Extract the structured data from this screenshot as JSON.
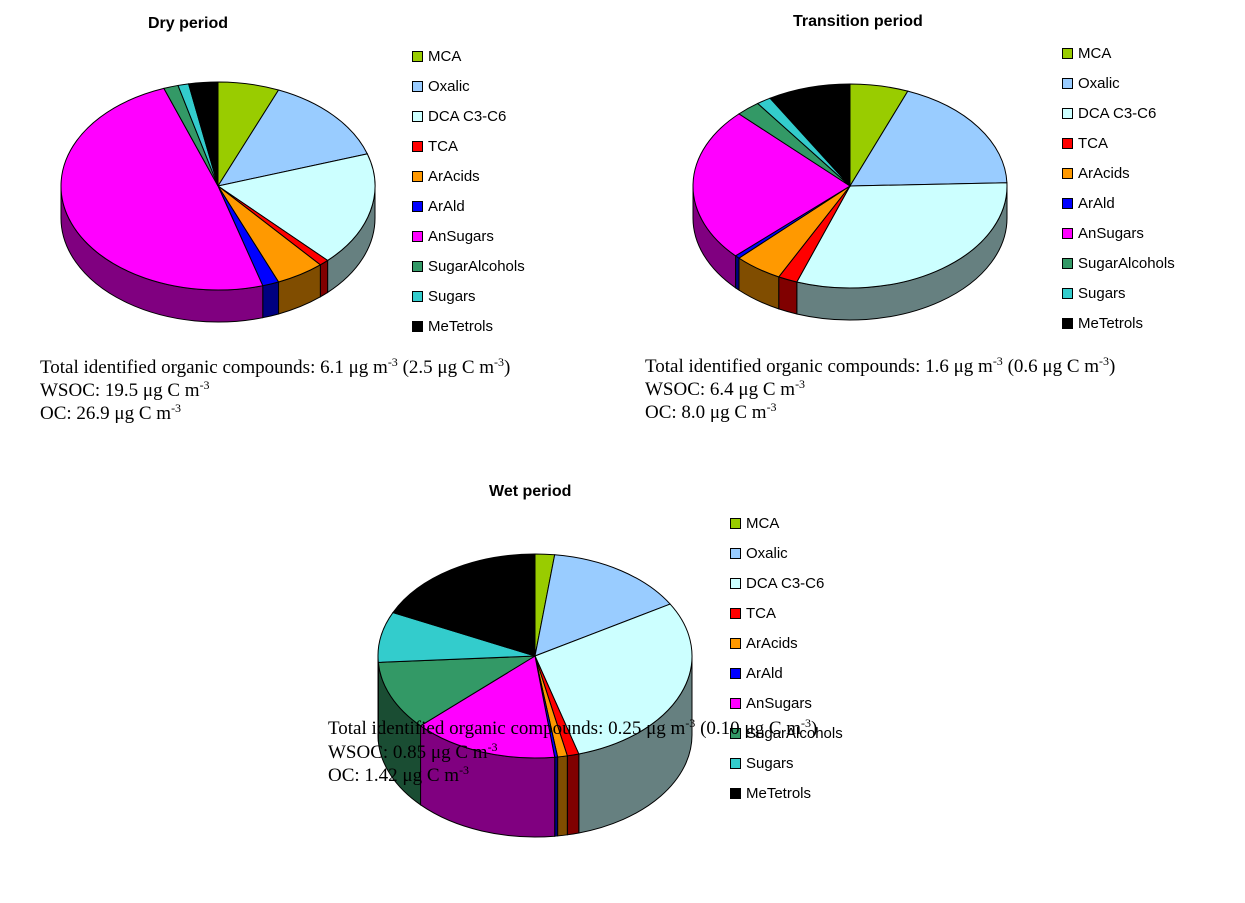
{
  "chart_data": [
    {
      "type": "pie",
      "title": "Dry period",
      "categories": [
        "MCA",
        "Oxalic",
        "DCA C3-C6",
        "TCA",
        "ArAcids",
        "ArAld",
        "AnSugars",
        "SugarAlcohols",
        "Sugars",
        "MeTetrols"
      ],
      "values": [
        6.3,
        13.7,
        17.7,
        1.0,
        5.0,
        1.7,
        49.0,
        1.5,
        1.1,
        3.0
      ],
      "colors": [
        "#99cc00",
        "#99ccff",
        "#ccffff",
        "#ff0000",
        "#ff9900",
        "#0000ff",
        "#ff00ff",
        "#339966",
        "#33cccc",
        "#000000"
      ],
      "legend_position": "right",
      "captions": [
        {
          "text": "Total identified organic compounds: 6.1 μg m",
          "sup": "-3",
          "text2": " (2.5 μg C m",
          "sup2": "-3",
          "text3": ")"
        },
        {
          "text": "WSOC: 19.5 μg C m",
          "sup": "-3"
        },
        {
          "text": "OC: 26.9 μg C m",
          "sup": "-3"
        }
      ]
    },
    {
      "type": "pie",
      "title": "Transition period",
      "categories": [
        "MCA",
        "Oxalic",
        "DCA C3-C6",
        "TCA",
        "ArAcids",
        "ArAld",
        "AnSugars",
        "SugarAlcohols",
        "Sugars",
        "MeTetrols"
      ],
      "values": [
        6.0,
        18.5,
        31.0,
        2.0,
        5.0,
        0.5,
        24.5,
        2.5,
        1.5,
        8.5
      ],
      "colors": [
        "#99cc00",
        "#99ccff",
        "#ccffff",
        "#ff0000",
        "#ff9900",
        "#0000ff",
        "#ff00ff",
        "#339966",
        "#33cccc",
        "#000000"
      ],
      "legend_position": "right",
      "captions": [
        {
          "text": "Total identified organic compounds: 1.6 μg m",
          "sup": "-3",
          "text2": " (0.6 μg C m",
          "sup2": "-3",
          "text3": ")"
        },
        {
          "text": "WSOC: 6.4 μg C m",
          "sup": "-3"
        },
        {
          "text": "OC: 8.0 μg C m",
          "sup": "-3"
        }
      ]
    },
    {
      "type": "pie",
      "title": "Wet period",
      "categories": [
        "MCA",
        "Oxalic",
        "DCA C3-C6",
        "TCA",
        "ArAcids",
        "ArAld",
        "AnSugars",
        "SugarAlcohols",
        "Sugars",
        "MeTetrols"
      ],
      "values": [
        2.0,
        14.5,
        29.0,
        1.2,
        1.0,
        0.3,
        15.0,
        11.0,
        8.0,
        18.0
      ],
      "colors": [
        "#99cc00",
        "#99ccff",
        "#ccffff",
        "#ff0000",
        "#ff9900",
        "#0000ff",
        "#ff00ff",
        "#339966",
        "#33cccc",
        "#000000"
      ],
      "legend_position": "right",
      "captions": [
        {
          "text": "Total identified organic compounds: 0.25 μg m",
          "sup": "-3",
          "text2": " (0.10 μg C m",
          "sup2": "-3",
          "text3": ")"
        },
        {
          "text": "WSOC: 0.85 μg C m",
          "sup": "-3"
        },
        {
          "text": "OC: 1.42 μg C m",
          "sup": "-3"
        }
      ]
    }
  ]
}
